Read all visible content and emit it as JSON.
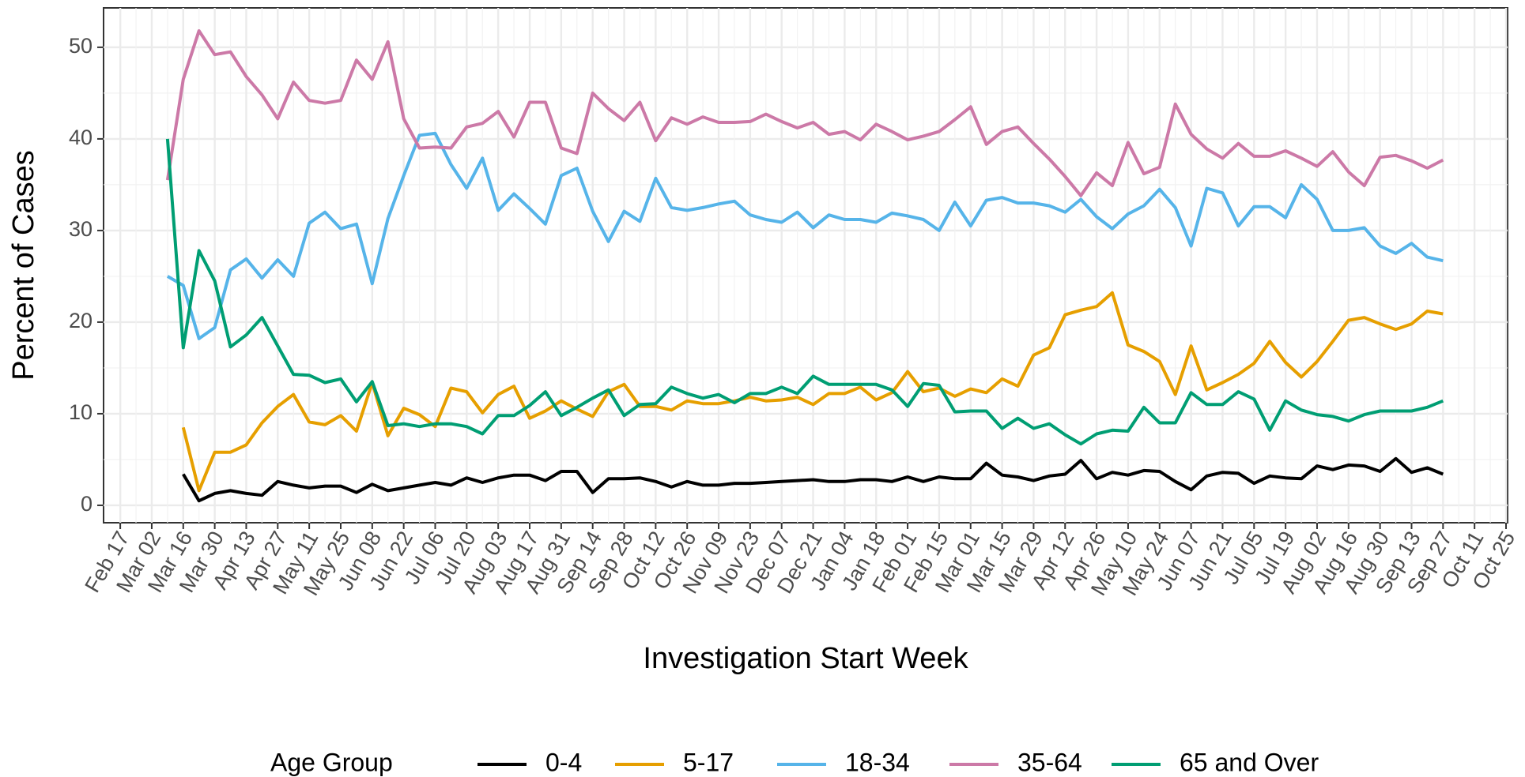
{
  "chart_data": {
    "type": "line",
    "x_label": "Investigation Start Week",
    "y_label": "Percent of Cases",
    "legend_title": "Age Group",
    "legend_position": "bottom",
    "grid": true,
    "categories": [
      "Feb 17",
      null,
      "Mar 02",
      null,
      "Mar 16",
      null,
      "Mar 30",
      null,
      "Apr 13",
      null,
      "Apr 27",
      null,
      "May 11",
      null,
      "May 25",
      null,
      "Jun 08",
      null,
      "Jun 22",
      null,
      "Jul 06",
      null,
      "Jul 20",
      null,
      "Aug 03",
      null,
      "Aug 17",
      null,
      "Aug 31",
      null,
      "Sep 14",
      null,
      "Sep 28",
      null,
      "Oct 12",
      null,
      "Oct 26",
      null,
      "Nov 09",
      null,
      "Nov 23",
      null,
      "Dec 07",
      null,
      "Dec 21",
      null,
      "Jan 04",
      null,
      "Jan 18",
      null,
      "Feb 01",
      null,
      "Feb 15",
      null,
      "Mar 01",
      null,
      "Mar 15",
      null,
      "Mar 29",
      null,
      "Apr 12",
      null,
      "Apr 26",
      null,
      "May 10",
      null,
      "May 24",
      null,
      "Jun 07",
      null,
      "Jun 21",
      null,
      "Jul 05",
      null,
      "Jul 19",
      null,
      "Aug 02",
      null,
      "Aug 16",
      null,
      "Aug 30",
      null,
      "Sep 13",
      null,
      "Sep 27",
      null,
      "Oct 11",
      null,
      "Oct 25"
    ],
    "ylim": [
      -1.9,
      54.3
    ],
    "yticks": [
      0,
      10,
      20,
      30,
      40,
      50
    ],
    "series": [
      {
        "name": "0-4",
        "color": "#000000",
        "values": [
          null,
          null,
          null,
          null,
          3.4,
          0.5,
          1.3,
          1.6,
          1.3,
          1.1,
          2.6,
          2.2,
          1.9,
          2.1,
          2.1,
          1.4,
          2.3,
          1.6,
          1.9,
          2.2,
          2.5,
          2.2,
          3,
          2.5,
          3,
          3.3,
          3.3,
          2.7,
          3.7,
          3.7,
          1.4,
          2.9,
          2.9,
          3,
          2.6,
          2,
          2.6,
          2.2,
          2.2,
          2.4,
          2.4,
          2.5,
          2.6,
          2.7,
          2.8,
          2.6,
          2.6,
          2.8,
          2.8,
          2.6,
          3.1,
          2.6,
          3.1,
          2.9,
          2.9,
          4.6,
          3.3,
          3.1,
          2.7,
          3.2,
          3.4,
          4.9,
          2.9,
          3.6,
          3.3,
          3.8,
          3.7,
          2.6,
          1.7,
          3.2,
          3.6,
          3.5,
          2.4,
          3.2,
          3,
          2.9,
          4.3,
          3.9,
          4.4,
          4.3,
          3.7,
          5.1,
          3.6,
          4.1,
          3.4,
          null,
          null,
          null,
          null
        ]
      },
      {
        "name": "5-17",
        "color": "#E69F00",
        "values": [
          null,
          null,
          null,
          null,
          8.5,
          1.6,
          5.8,
          5.8,
          6.6,
          9,
          10.8,
          12.1,
          9.1,
          8.8,
          9.8,
          8.1,
          13.4,
          7.6,
          10.6,
          9.9,
          8.6,
          12.8,
          12.4,
          10.1,
          12.1,
          13,
          9.5,
          10.3,
          11.4,
          10.5,
          9.7,
          12.4,
          13.2,
          10.8,
          10.8,
          10.4,
          11.4,
          11.1,
          11.1,
          11.4,
          11.8,
          11.4,
          11.5,
          11.8,
          11,
          12.2,
          12.2,
          12.9,
          11.5,
          12.3,
          14.6,
          12.4,
          12.8,
          11.9,
          12.7,
          12.3,
          13.8,
          13,
          16.4,
          17.2,
          20.8,
          21.3,
          21.7,
          23.2,
          17.5,
          16.8,
          15.7,
          12.1,
          17.4,
          12.6,
          13.4,
          14.3,
          15.5,
          17.9,
          15.6,
          14,
          15.7,
          17.9,
          20.2,
          20.5,
          19.8,
          19.2,
          19.8,
          21.2,
          20.9,
          null,
          null,
          null,
          null
        ]
      },
      {
        "name": "18-34",
        "color": "#56B4E9",
        "values": [
          null,
          null,
          null,
          25,
          24,
          18.2,
          19.4,
          25.7,
          26.9,
          24.8,
          26.8,
          25,
          30.8,
          32,
          30.2,
          30.7,
          24.2,
          31.3,
          36,
          40.4,
          40.6,
          37.2,
          34.6,
          37.9,
          32.2,
          34,
          32.4,
          30.7,
          36,
          36.8,
          32.1,
          28.8,
          32.1,
          31,
          35.7,
          32.5,
          32.2,
          32.5,
          32.9,
          33.2,
          31.7,
          31.2,
          30.9,
          32,
          30.3,
          31.7,
          31.2,
          31.2,
          30.9,
          31.9,
          31.6,
          31.2,
          30,
          33.1,
          30.5,
          33.3,
          33.6,
          33,
          33,
          32.7,
          32,
          33.4,
          31.5,
          30.2,
          31.8,
          32.7,
          34.5,
          32.5,
          28.3,
          34.6,
          34.1,
          30.5,
          32.6,
          32.6,
          31.4,
          35,
          33.4,
          30,
          30,
          30.3,
          28.3,
          27.5,
          28.6,
          27.1,
          26.7,
          null,
          null,
          null,
          null
        ]
      },
      {
        "name": "35-64",
        "color": "#CC79A7",
        "values": [
          null,
          null,
          null,
          35.5,
          46.5,
          51.8,
          49.2,
          49.5,
          46.8,
          44.8,
          42.2,
          46.2,
          44.2,
          43.9,
          44.2,
          48.6,
          46.5,
          50.6,
          42.2,
          39,
          39.1,
          39,
          41.3,
          41.7,
          43,
          40.2,
          44,
          44,
          39,
          38.4,
          45,
          43.3,
          42,
          44,
          39.8,
          42.3,
          41.6,
          42.4,
          41.8,
          41.8,
          41.9,
          42.7,
          41.9,
          41.2,
          41.8,
          40.5,
          40.8,
          39.9,
          41.6,
          40.8,
          39.9,
          40.3,
          40.8,
          42.1,
          43.5,
          39.4,
          40.8,
          41.3,
          39.5,
          37.8,
          35.9,
          33.8,
          36.3,
          34.9,
          39.6,
          36.2,
          36.9,
          43.8,
          40.5,
          38.9,
          37.9,
          39.5,
          38.1,
          38.1,
          38.7,
          37.9,
          37,
          38.6,
          36.4,
          34.9,
          38,
          38.2,
          37.6,
          36.8,
          37.7,
          null,
          null,
          null,
          null
        ]
      },
      {
        "name": "65 and Over",
        "color": "#009E73",
        "values": [
          null,
          null,
          null,
          40,
          17.2,
          27.8,
          24.5,
          17.3,
          18.6,
          20.5,
          17.4,
          14.3,
          14.2,
          13.4,
          13.8,
          11.3,
          13.5,
          8.7,
          8.9,
          8.6,
          8.9,
          8.9,
          8.6,
          7.8,
          9.8,
          9.8,
          10.9,
          12.4,
          9.8,
          10.7,
          11.7,
          12.6,
          9.8,
          11,
          11.1,
          12.9,
          12.2,
          11.7,
          12.1,
          11.2,
          12.2,
          12.2,
          12.9,
          12.2,
          14.1,
          13.2,
          13.2,
          13.2,
          13.2,
          12.6,
          10.8,
          13.3,
          13.1,
          10.2,
          10.3,
          10.3,
          8.4,
          9.5,
          8.4,
          8.9,
          7.7,
          6.7,
          7.8,
          8.2,
          8.1,
          10.7,
          9,
          9,
          12.3,
          11,
          11,
          12.4,
          11.6,
          8.2,
          11.4,
          10.4,
          9.9,
          9.7,
          9.2,
          9.9,
          10.3,
          10.3,
          10.3,
          10.7,
          11.4,
          null,
          null,
          null,
          null
        ]
      }
    ]
  }
}
